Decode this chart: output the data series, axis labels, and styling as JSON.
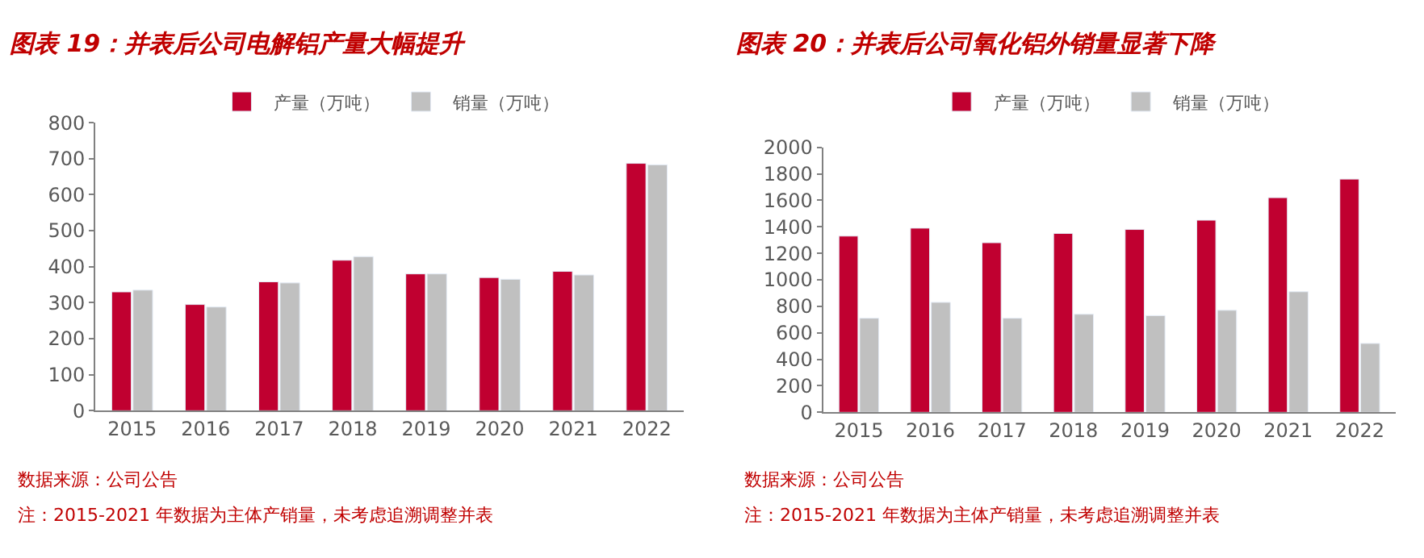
{
  "chart_data": [
    {
      "type": "bar",
      "title": "图表 19：并表后公司电解铝产量大幅提升",
      "categories": [
        "2015",
        "2016",
        "2017",
        "2018",
        "2019",
        "2020",
        "2021",
        "2022"
      ],
      "series": [
        {
          "name": "产量（万吨）",
          "color": "#c00030",
          "values": [
            330,
            295,
            358,
            418,
            380,
            370,
            387,
            687
          ]
        },
        {
          "name": "销量（万吨）",
          "color": "#c0c0c0",
          "values": [
            335,
            288,
            355,
            428,
            380,
            365,
            377,
            683
          ]
        }
      ],
      "ylim": [
        0,
        800
      ],
      "yticks": [
        0,
        100,
        200,
        300,
        400,
        500,
        600,
        700,
        800
      ],
      "legend": "top",
      "annotations": [
        "数据来源：公司公告",
        "注：2015-2021 年数据为主体产销量，未考虑追溯调整并表"
      ]
    },
    {
      "type": "bar",
      "title": "图表 20：并表后公司氧化铝外销量显著下降",
      "categories": [
        "2015",
        "2016",
        "2017",
        "2018",
        "2019",
        "2020",
        "2021",
        "2022"
      ],
      "series": [
        {
          "name": "产量（万吨）",
          "color": "#c00030",
          "values": [
            1330,
            1390,
            1280,
            1350,
            1380,
            1450,
            1620,
            1760
          ]
        },
        {
          "name": "销量（万吨）",
          "color": "#c0c0c0",
          "values": [
            710,
            830,
            710,
            740,
            730,
            770,
            910,
            520
          ]
        }
      ],
      "ylim": [
        0,
        2000
      ],
      "yticks": [
        0,
        200,
        400,
        600,
        800,
        1000,
        1200,
        1400,
        1600,
        1800,
        2000
      ],
      "legend": "top",
      "annotations": [
        "数据来源：公司公告",
        "注：2015-2021 年数据为主体产销量，未考虑追溯调整并表"
      ]
    }
  ]
}
